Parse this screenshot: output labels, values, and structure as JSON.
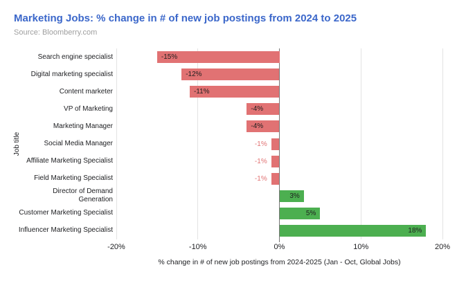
{
  "header": {
    "title": "Marketing Jobs: % change in # of new job postings from 2024 to 2025",
    "source": "Source: Bloomberry.com"
  },
  "chart_data": {
    "type": "bar",
    "orientation": "horizontal",
    "title": "Marketing Jobs: % change in # of new job postings from 2024 to 2025",
    "categories": [
      "Search engine specialist",
      "Digital marketing specialist",
      "Content marketer",
      "VP of Marketing",
      "Marketing Manager",
      "Social Media Manager",
      "Affiliate Marketing Specialist",
      "Field Marketing Specialist",
      "Director of Demand\nGeneration",
      "Customer Marketing Specialist",
      "Influencer Marketing Specialist"
    ],
    "values": [
      -15,
      -12,
      -11,
      -4,
      -4,
      -1,
      -1,
      -1,
      3,
      5,
      18
    ],
    "bar_labels": [
      "-15%",
      "-12%",
      "-11%",
      "-4%",
      "-4%",
      "-1%",
      "-1%",
      "-1%",
      "3%",
      "5%",
      "18%"
    ],
    "xlabel": "% change in # of new job postings from 2024-2025 (Jan - Oct, Global Jobs)",
    "ylabel": "Job title",
    "xlim": [
      -20,
      20
    ],
    "x_tick_labels": [
      "-20%",
      "-10%",
      "0%",
      "10%",
      "20%"
    ],
    "x_tick_values": [
      -20,
      -10,
      0,
      10,
      20
    ],
    "grid": "vertical",
    "legend": "none",
    "colors": {
      "negative_bar": "#E17273",
      "positive_bar": "#4CAF50",
      "inside_label_text": "#1F1F1F",
      "outside_negative_label_text": "#E17273",
      "title_text": "#3B67CA",
      "source_text": "#9E9E9E",
      "gridline": "#E3E3E3",
      "zero_axis": "#757575"
    }
  }
}
